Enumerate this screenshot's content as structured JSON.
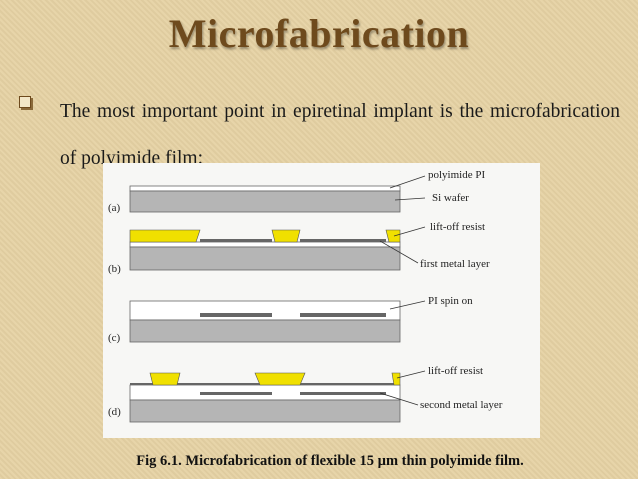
{
  "header": {
    "title": "Microfabrication"
  },
  "bullet": {
    "text": "The most important point in epiretinal implant is the microfabrication of polyimide film:"
  },
  "figure": {
    "panels": [
      "(a)",
      "(b)",
      "(c)",
      "(d)"
    ],
    "annotations": [
      "polyimide PI",
      "Si wafer",
      "lift-off resist",
      "first metal layer",
      "PI spin on",
      "lift-off resist",
      "second metal layer"
    ],
    "caption": "Fig 6.1. Microfabrication of flexible 15 µm thin polyimide film."
  }
}
